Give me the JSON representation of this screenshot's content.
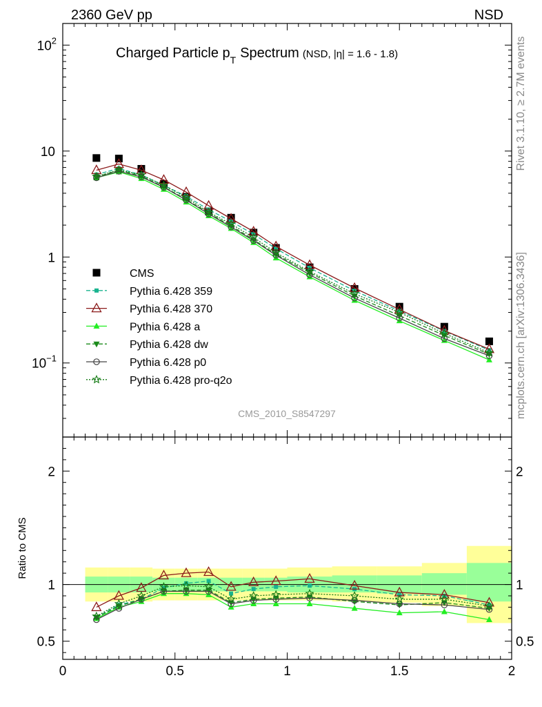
{
  "header": {
    "left": "2360 GeV pp",
    "right": "NSD"
  },
  "side_labels": {
    "rivet": "Rivet 3.1.10, ≥ 2.7M events",
    "mcplots": "mcplots.cern.ch [arXiv:1306.3436]"
  },
  "chart_data": [
    {
      "type": "scatter",
      "panel": "main",
      "title_main": "Charged Particle p",
      "title_sub": "T",
      "title_word": "Spectrum",
      "title_small": "(NSD, |η| = 1.6 - 1.8)",
      "watermark": "CMS_2010_S8547297",
      "xlim": [
        0,
        2
      ],
      "ylim": [
        0.02,
        160
      ],
      "yscale": "log",
      "y_ticks": [
        {
          "value": 100,
          "base": "10",
          "exp": "2"
        },
        {
          "value": 10,
          "base": "10",
          "exp": ""
        },
        {
          "value": 1,
          "base": "1",
          "exp": ""
        },
        {
          "value": 0.1,
          "base": "10",
          "exp": "−1"
        }
      ],
      "legend_position": "lower-left",
      "x": [
        0.15,
        0.25,
        0.35,
        0.45,
        0.55,
        0.65,
        0.75,
        0.85,
        0.95,
        1.1,
        1.3,
        1.5,
        1.7,
        1.9
      ],
      "series": [
        {
          "name": "CMS",
          "color": "#000000",
          "marker": "square-filled",
          "line": "none",
          "values": [
            8.6,
            8.5,
            6.8,
            4.9,
            3.7,
            2.7,
            2.35,
            1.7,
            1.22,
            0.8,
            0.5,
            0.34,
            0.22,
            0.16
          ]
        },
        {
          "name": "Pythia 6.428 359",
          "color": "#19b38f",
          "marker": "square-small",
          "line": "dashed",
          "values": [
            6.0,
            6.85,
            5.95,
            4.75,
            3.75,
            2.8,
            2.17,
            1.64,
            1.2,
            0.79,
            0.48,
            0.31,
            0.2,
            0.132
          ]
        },
        {
          "name": "Pythia 6.428 370",
          "color": "#8b1a1a",
          "marker": "triangle-open",
          "line": "solid",
          "values": [
            6.6,
            7.55,
            6.6,
            5.35,
            4.1,
            3.05,
            2.3,
            1.74,
            1.26,
            0.84,
            0.51,
            0.32,
            0.202,
            0.135
          ]
        },
        {
          "name": "Pythia 6.428 a",
          "color": "#22ee22",
          "marker": "triangle-filled",
          "line": "solid",
          "values": [
            5.6,
            6.35,
            5.5,
            4.35,
            3.3,
            2.45,
            1.86,
            1.37,
            0.98,
            0.65,
            0.39,
            0.25,
            0.163,
            0.107
          ]
        },
        {
          "name": "Pythia 6.428 dw",
          "color": "#1a8a1a",
          "marker": "triangle-down-filled",
          "line": "dashed",
          "values": [
            5.7,
            6.6,
            5.8,
            4.6,
            3.5,
            2.6,
            1.97,
            1.46,
            1.06,
            0.71,
            0.43,
            0.28,
            0.182,
            0.121
          ]
        },
        {
          "name": "Pythia 6.428 p0",
          "color": "#444444",
          "marker": "circle-open",
          "line": "solid",
          "values": [
            5.6,
            6.45,
            5.7,
            4.55,
            3.45,
            2.55,
            1.92,
            1.43,
            1.04,
            0.68,
            0.41,
            0.265,
            0.17,
            0.117
          ]
        },
        {
          "name": "Pythia 6.428 pro-q2o",
          "color": "#137a13",
          "marker": "star-open",
          "line": "dotted",
          "values": [
            5.75,
            6.65,
            5.95,
            4.75,
            3.65,
            2.65,
            2.05,
            1.53,
            1.1,
            0.73,
            0.45,
            0.3,
            0.19,
            0.125
          ]
        }
      ]
    },
    {
      "type": "line",
      "panel": "ratio",
      "ylabel": "Ratio to CMS",
      "xlim": [
        0,
        2
      ],
      "ylim": [
        0.34,
        2.3
      ],
      "y_ticks": [
        {
          "value": 0.5,
          "label": "0.5"
        },
        {
          "value": 1,
          "label": "1"
        },
        {
          "value": 2,
          "label": "2"
        }
      ],
      "x_ticks": [
        {
          "value": 0,
          "label": "0"
        },
        {
          "value": 0.5,
          "label": "0.5"
        },
        {
          "value": 1,
          "label": "1"
        },
        {
          "value": 1.5,
          "label": "1.5"
        },
        {
          "value": 2,
          "label": "2"
        }
      ],
      "bands": [
        {
          "x0": 0.1,
          "x1": 0.2,
          "stat": [
            0.93,
            1.07
          ],
          "tot": [
            0.85,
            1.15
          ]
        },
        {
          "x0": 0.2,
          "x1": 0.3,
          "stat": [
            0.93,
            1.07
          ],
          "tot": [
            0.85,
            1.15
          ]
        },
        {
          "x0": 0.3,
          "x1": 0.4,
          "stat": [
            0.93,
            1.07
          ],
          "tot": [
            0.85,
            1.15
          ]
        },
        {
          "x0": 0.4,
          "x1": 0.5,
          "stat": [
            0.94,
            1.06
          ],
          "tot": [
            0.86,
            1.14
          ]
        },
        {
          "x0": 0.5,
          "x1": 0.6,
          "stat": [
            0.94,
            1.06
          ],
          "tot": [
            0.86,
            1.14
          ]
        },
        {
          "x0": 0.6,
          "x1": 0.7,
          "stat": [
            0.94,
            1.06
          ],
          "tot": [
            0.86,
            1.14
          ]
        },
        {
          "x0": 0.7,
          "x1": 0.8,
          "stat": [
            0.94,
            1.06
          ],
          "tot": [
            0.86,
            1.14
          ]
        },
        {
          "x0": 0.8,
          "x1": 0.9,
          "stat": [
            0.94,
            1.06
          ],
          "tot": [
            0.86,
            1.14
          ]
        },
        {
          "x0": 0.9,
          "x1": 1.0,
          "stat": [
            0.94,
            1.06
          ],
          "tot": [
            0.86,
            1.14
          ]
        },
        {
          "x0": 1.0,
          "x1": 1.2,
          "stat": [
            0.93,
            1.07
          ],
          "tot": [
            0.86,
            1.15
          ]
        },
        {
          "x0": 1.2,
          "x1": 1.4,
          "stat": [
            0.93,
            1.08
          ],
          "tot": [
            0.85,
            1.16
          ]
        },
        {
          "x0": 1.4,
          "x1": 1.6,
          "stat": [
            0.92,
            1.08
          ],
          "tot": [
            0.84,
            1.16
          ]
        },
        {
          "x0": 1.6,
          "x1": 1.8,
          "stat": [
            0.91,
            1.1
          ],
          "tot": [
            0.81,
            1.19
          ]
        },
        {
          "x0": 1.8,
          "x1": 2.0,
          "stat": [
            0.85,
            1.19
          ],
          "tot": [
            0.66,
            1.34
          ]
        }
      ],
      "x": [
        0.15,
        0.25,
        0.35,
        0.45,
        0.55,
        0.65,
        0.75,
        0.85,
        0.95,
        1.1,
        1.3,
        1.5,
        1.7,
        1.9
      ],
      "series": [
        {
          "name": "Pythia 6.428 359",
          "values": [
            0.71,
            0.82,
            0.87,
            0.97,
            1.01,
            1.03,
            0.92,
            0.96,
            0.98,
            0.99,
            0.96,
            0.91,
            0.9,
            0.82
          ]
        },
        {
          "name": "Pythia 6.428 370",
          "values": [
            0.8,
            0.9,
            0.97,
            1.08,
            1.1,
            1.11,
            0.98,
            1.02,
            1.03,
            1.05,
            0.99,
            0.93,
            0.91,
            0.84
          ]
        },
        {
          "name": "Pythia 6.428 a",
          "values": [
            0.7,
            0.8,
            0.85,
            0.92,
            0.92,
            0.91,
            0.8,
            0.83,
            0.83,
            0.83,
            0.79,
            0.75,
            0.76,
            0.69
          ]
        },
        {
          "name": "Pythia 6.428 dw",
          "values": [
            0.71,
            0.81,
            0.87,
            0.94,
            0.95,
            0.95,
            0.84,
            0.87,
            0.88,
            0.89,
            0.85,
            0.82,
            0.84,
            0.79
          ]
        },
        {
          "name": "Pythia 6.428 p0",
          "values": [
            0.69,
            0.79,
            0.87,
            0.94,
            0.94,
            0.94,
            0.83,
            0.86,
            0.87,
            0.88,
            0.86,
            0.83,
            0.82,
            0.78
          ]
        },
        {
          "name": "Pythia 6.428 pro-q2o",
          "values": [
            0.72,
            0.83,
            0.9,
            0.98,
            0.99,
            0.98,
            0.87,
            0.9,
            0.91,
            0.92,
            0.9,
            0.87,
            0.87,
            0.81
          ]
        }
      ]
    }
  ]
}
